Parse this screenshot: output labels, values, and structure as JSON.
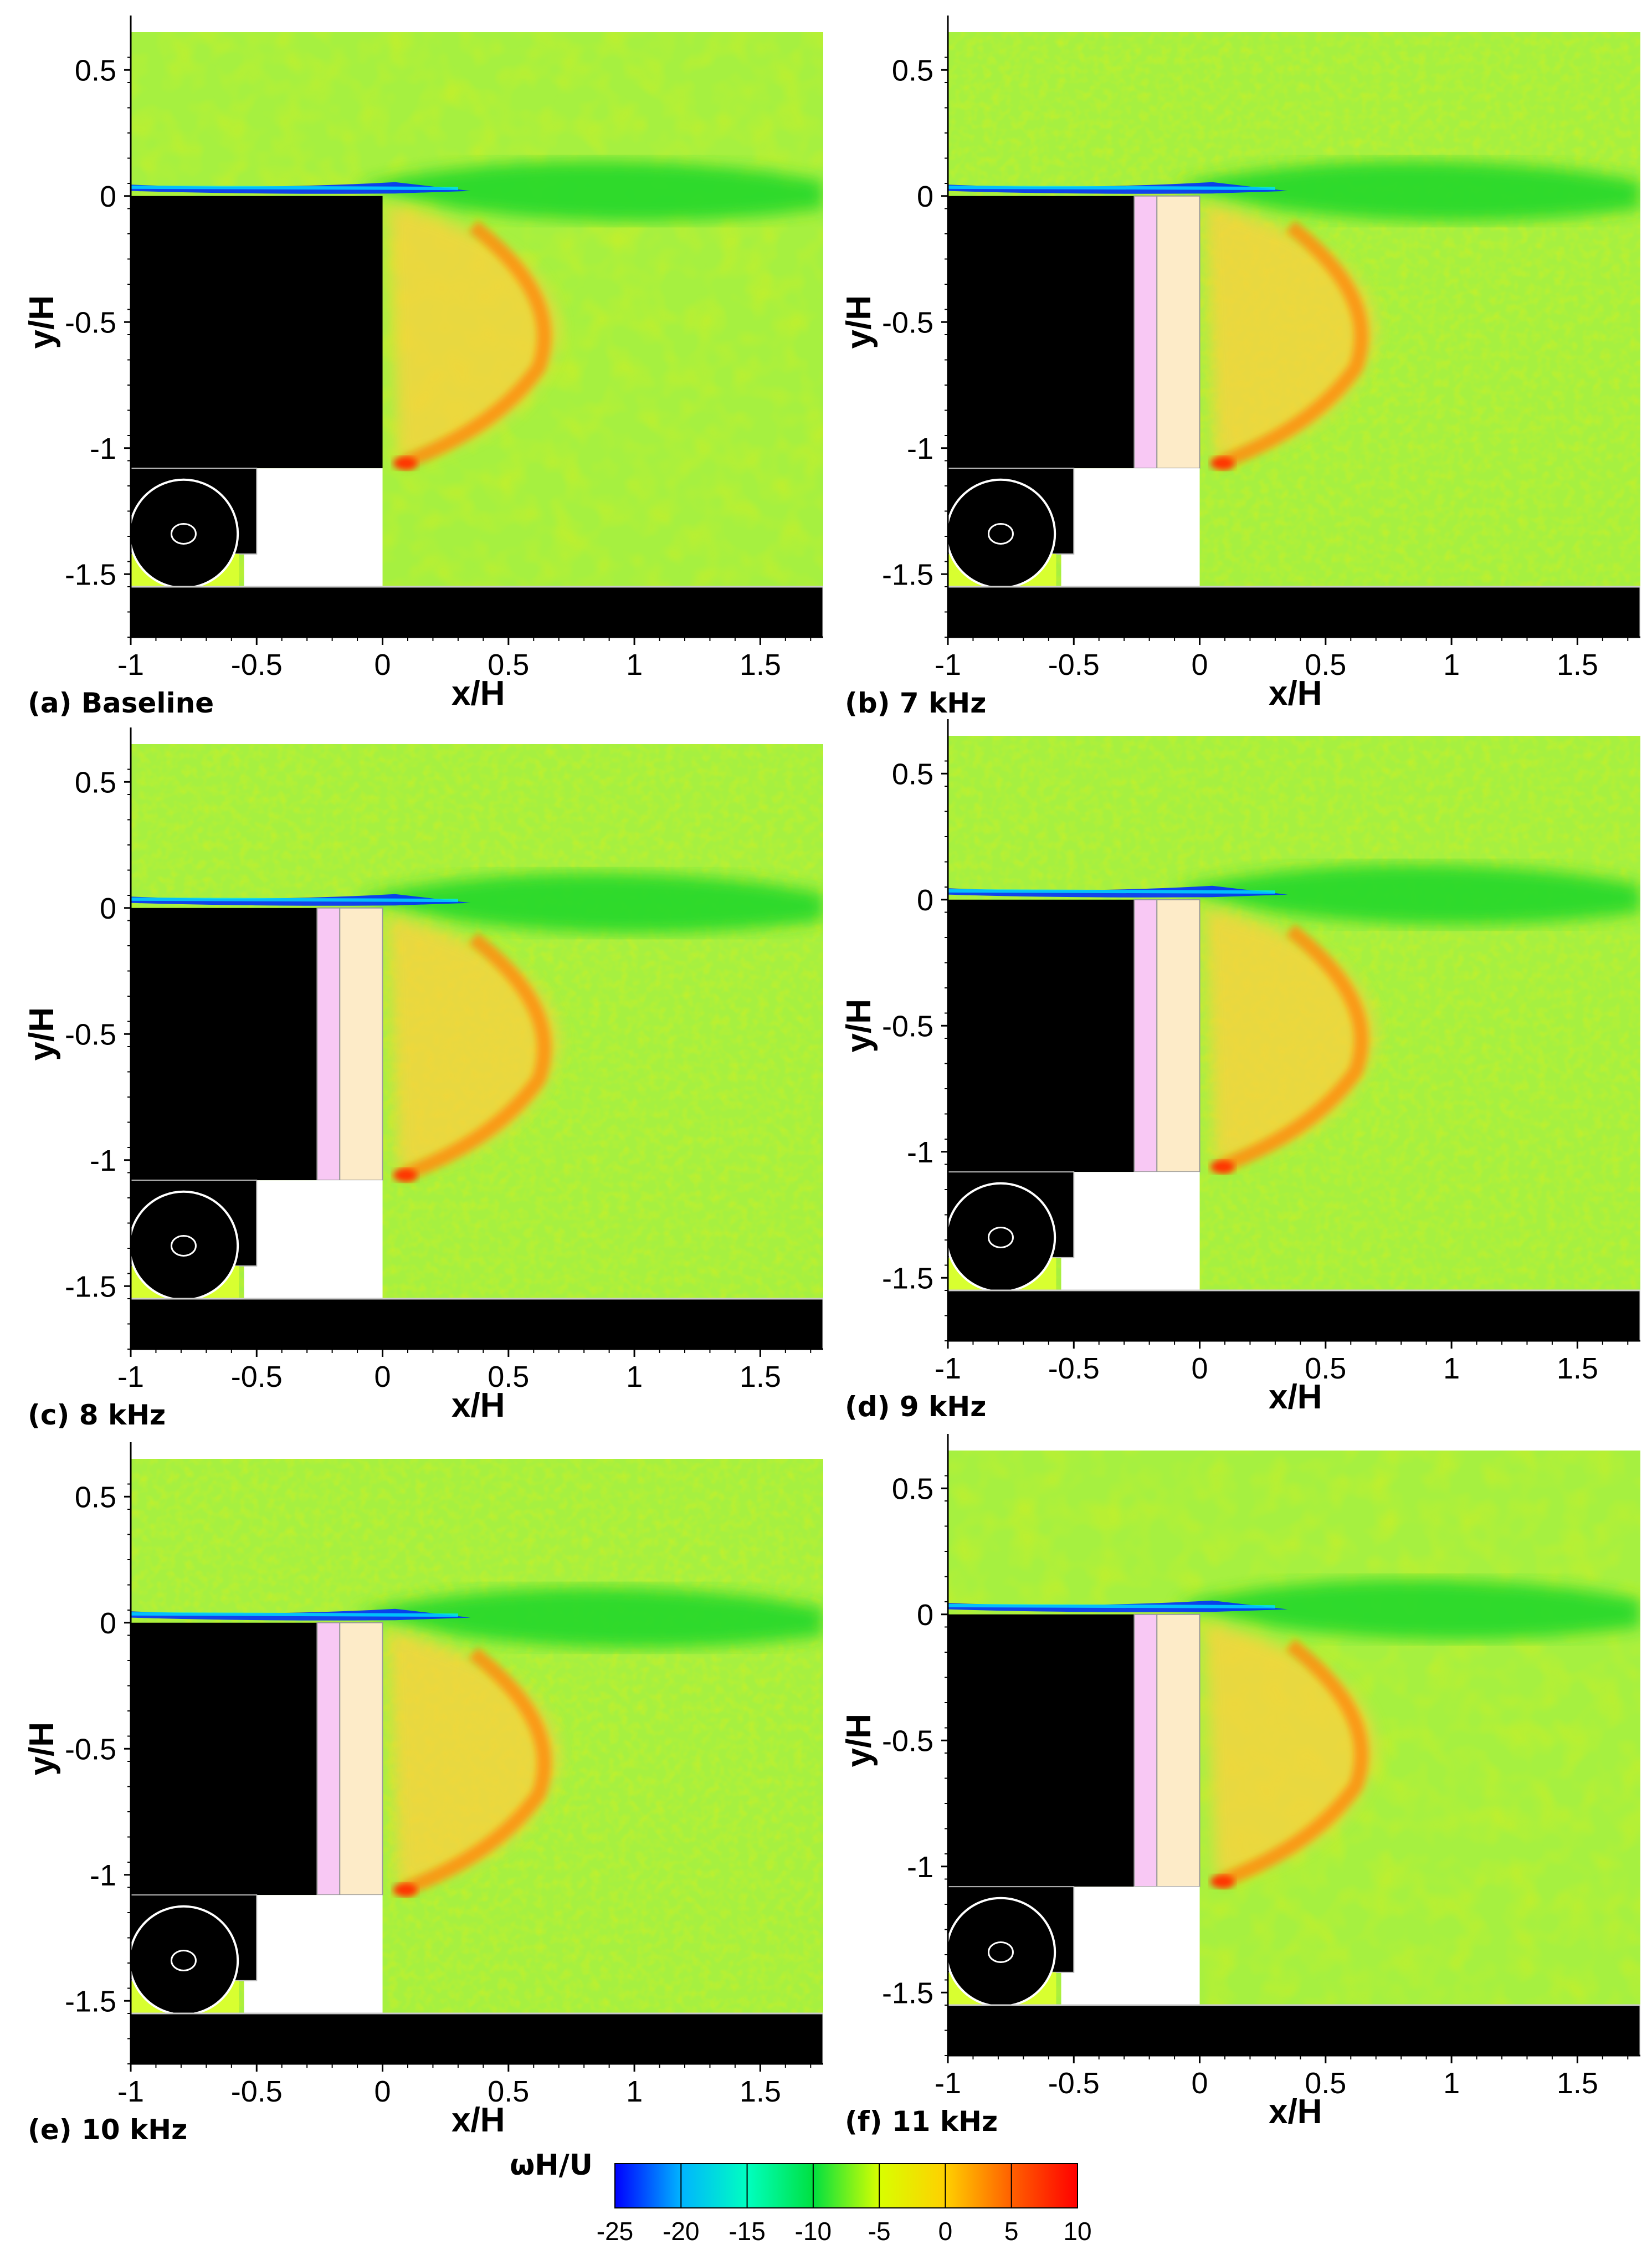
{
  "chart_data": [
    {
      "type": "heatmap",
      "panel_label": "(a) Baseline",
      "xlabel": "x/H",
      "ylabel": "y/H",
      "xlim": [
        -1,
        1.75
      ],
      "ylim": [
        -1.75,
        0.65
      ],
      "xticks": [
        "-1",
        "-0.5",
        "0",
        "0.5",
        "1",
        "1.5"
      ],
      "yticks": [
        "0.5",
        "0",
        "-0.5",
        "-1",
        "-1.5"
      ],
      "treatment": "none"
    },
    {
      "type": "heatmap",
      "panel_label": "(b) 7 kHz",
      "xlabel": "x/H",
      "ylabel": "y/H",
      "xlim": [
        -1,
        1.75
      ],
      "ylim": [
        -1.75,
        0.65
      ],
      "xticks": [
        "-1",
        "-0.5",
        "0",
        "0.5",
        "1",
        "1.5"
      ],
      "yticks": [
        "0.5",
        "0",
        "-0.5",
        "-1",
        "-1.5"
      ],
      "treatment": "plate"
    },
    {
      "type": "heatmap",
      "panel_label": "(c) 8 kHz",
      "xlabel": "x/H",
      "ylabel": "y/H",
      "xlim": [
        -1,
        1.75
      ],
      "ylim": [
        -1.75,
        0.65
      ],
      "xticks": [
        "-1",
        "-0.5",
        "0",
        "0.5",
        "1",
        "1.5"
      ],
      "yticks": [
        "0.5",
        "0",
        "-0.5",
        "-1",
        "-1.5"
      ],
      "treatment": "plate"
    },
    {
      "type": "heatmap",
      "panel_label": "(d) 9 kHz",
      "xlabel": "x/H",
      "ylabel": "y/H",
      "xlim": [
        -1,
        1.75
      ],
      "ylim": [
        -1.75,
        0.65
      ],
      "xticks": [
        "-1",
        "-0.5",
        "0",
        "0.5",
        "1",
        "1.5"
      ],
      "yticks": [
        "0.5",
        "0",
        "-0.5",
        "-1",
        "-1.5"
      ],
      "treatment": "plate"
    },
    {
      "type": "heatmap",
      "panel_label": "(e) 10 kHz",
      "xlabel": "x/H",
      "ylabel": "y/H",
      "xlim": [
        -1,
        1.75
      ],
      "ylim": [
        -1.75,
        0.65
      ],
      "xticks": [
        "-1",
        "-0.5",
        "0",
        "0.5",
        "1",
        "1.5"
      ],
      "yticks": [
        "0.5",
        "0",
        "-0.5",
        "-1",
        "-1.5"
      ],
      "treatment": "plate"
    },
    {
      "type": "heatmap",
      "panel_label": "(f) 11 kHz",
      "xlabel": "x/H",
      "ylabel": "y/H",
      "xlim": [
        -1,
        1.75
      ],
      "ylim": [
        -1.75,
        0.65
      ],
      "xticks": [
        "-1",
        "-0.5",
        "0",
        "0.5",
        "1",
        "1.5"
      ],
      "yticks": [
        "0.5",
        "0",
        "-0.5",
        "-1",
        "-1.5"
      ],
      "treatment": "plate"
    }
  ],
  "colorbar": {
    "title": "ωH/U",
    "ticks": [
      "-25",
      "-20",
      "-15",
      "-10",
      "-5",
      "0",
      "5",
      "10"
    ],
    "range": [
      -25,
      10
    ],
    "colors": [
      "#0000ff",
      "#00b4ff",
      "#00ffc0",
      "#00e040",
      "#d8ff00",
      "#ffd000",
      "#ff6000",
      "#ff0000"
    ]
  },
  "colors": {
    "background_field": "#a6f040",
    "shear_layer_low": "#0030ff",
    "wake_deficit": "#22d82a",
    "recirculation": "#ffd040",
    "vortex_core": "#ff3000",
    "treatment_pink": "#f8c8f4",
    "treatment_cream": "#fdebc8",
    "body": "#000000"
  }
}
